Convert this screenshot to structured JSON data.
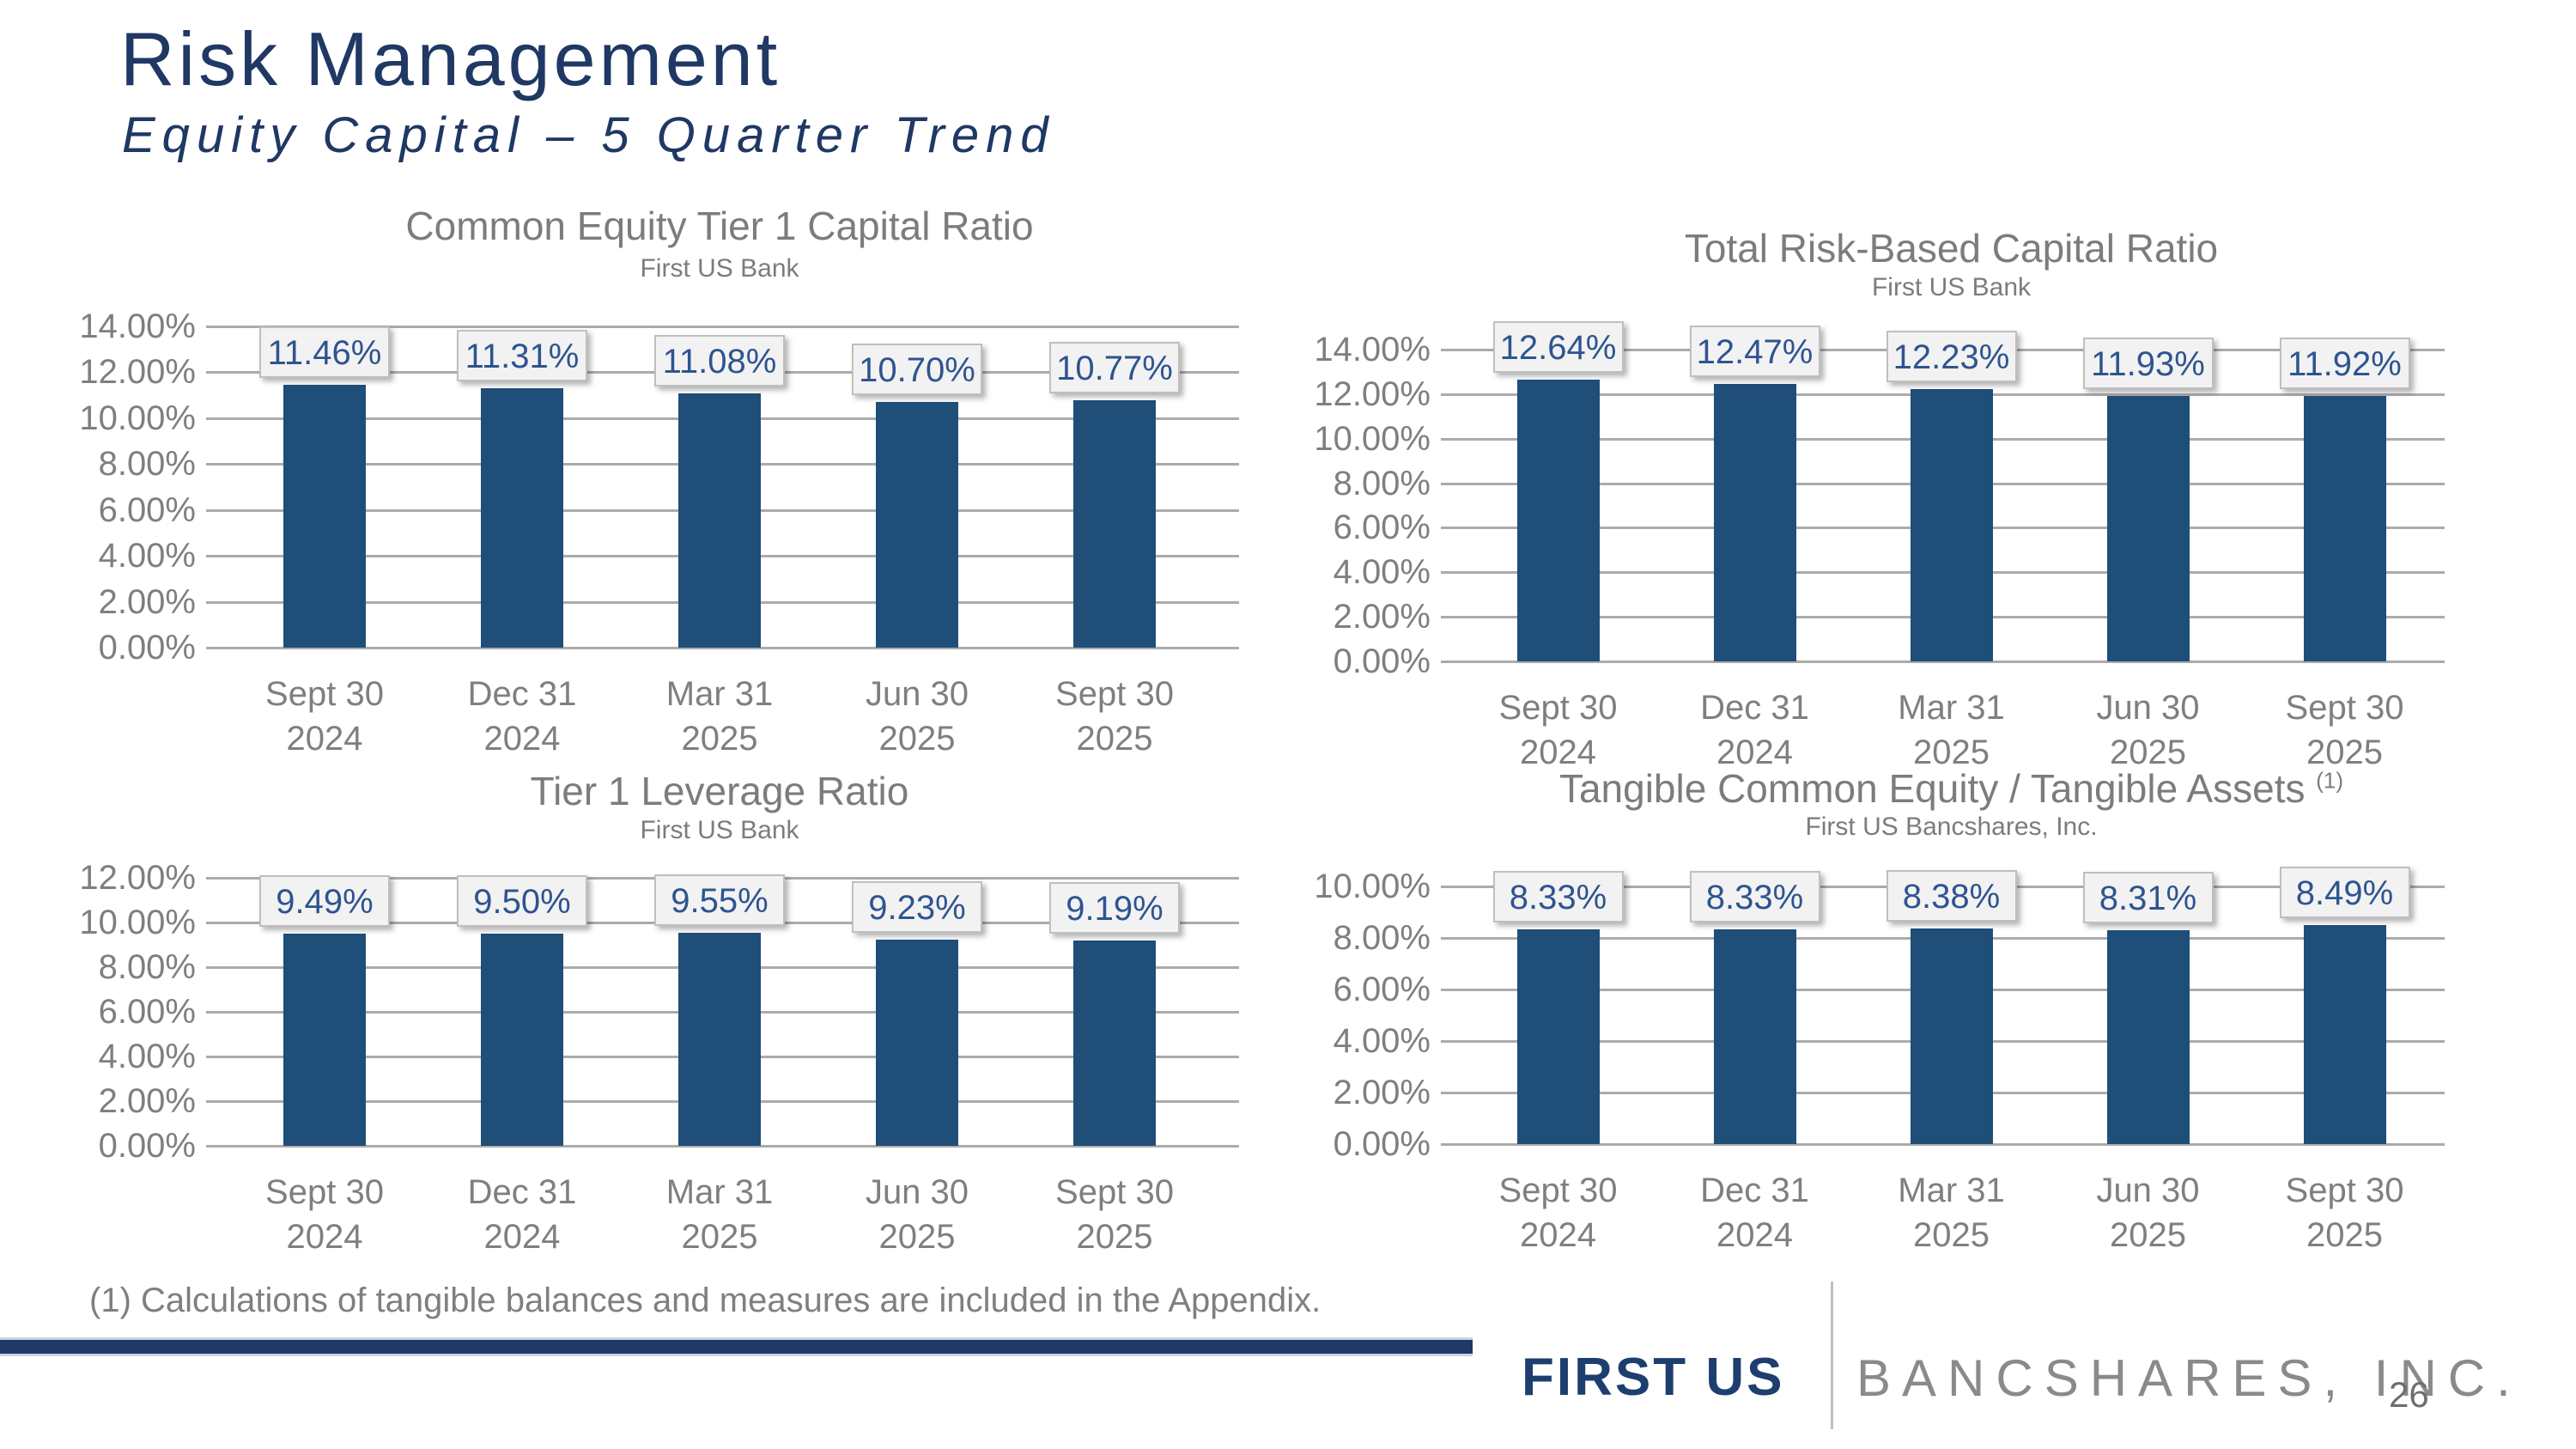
{
  "header": {
    "title": "Risk Management",
    "subtitle": "Equity Capital – 5 Quarter Trend"
  },
  "footnote": "(1) Calculations of tangible balances and measures are included in the Appendix.",
  "footer": {
    "logo_primary": "FIRST US",
    "logo_secondary": "BANCSHARES, INC.",
    "page_number": "26"
  },
  "colors": {
    "title_navy": "#1F3864",
    "bar_fill": "#1F4E79",
    "value_label_text": "#2E5490",
    "value_label_box_fill": "#F2F2F2",
    "value_label_box_border": "#BFBFBF",
    "axis_text_gray": "#7F7F7F",
    "chart_title_gray": "#7C7C7C",
    "gridline_gray": "#ABABAB",
    "footer_bar_navy": "#1F3864",
    "footer_bar_edge": "#C9D2E8",
    "logo_navy": "#1D3E6E",
    "logo_gray": "#8A8A8A"
  },
  "chart_data": [
    {
      "type": "bar",
      "title": "Common Equity Tier 1 Capital Ratio",
      "title_superscript": "",
      "subtitle": "First US Bank",
      "categories": [
        [
          "Sept 30",
          "2024"
        ],
        [
          "Dec 31",
          "2024"
        ],
        [
          "Mar 31",
          "2025"
        ],
        [
          "Jun 30",
          "2025"
        ],
        [
          "Sept 30",
          "2025"
        ]
      ],
      "values": [
        11.46,
        11.31,
        11.08,
        10.7,
        10.77
      ],
      "value_labels": [
        "11.46%",
        "11.31%",
        "11.08%",
        "10.70%",
        "10.77%"
      ],
      "unit": "%",
      "ylim": [
        0,
        14
      ],
      "ytick_step": 2,
      "ytick_labels": [
        "14.00%",
        "12.00%",
        "10.00%",
        "8.00%",
        "6.00%",
        "4.00%",
        "2.00%",
        "0.00%"
      ],
      "grid": true,
      "legend": "none",
      "data_labels": "boxed above bars",
      "bar_color": "#1F4E79"
    },
    {
      "type": "bar",
      "title": "Total Risk-Based Capital Ratio",
      "title_superscript": "",
      "subtitle": "First US Bank",
      "categories": [
        [
          "Sept 30",
          "2024"
        ],
        [
          "Dec 31",
          "2024"
        ],
        [
          "Mar 31",
          "2025"
        ],
        [
          "Jun 30",
          "2025"
        ],
        [
          "Sept 30",
          "2025"
        ]
      ],
      "values": [
        12.64,
        12.47,
        12.23,
        11.93,
        11.92
      ],
      "value_labels": [
        "12.64%",
        "12.47%",
        "12.23%",
        "11.93%",
        "11.92%"
      ],
      "unit": "%",
      "ylim": [
        0,
        14
      ],
      "ytick_step": 2,
      "ytick_labels": [
        "14.00%",
        "12.00%",
        "10.00%",
        "8.00%",
        "6.00%",
        "4.00%",
        "2.00%",
        "0.00%"
      ],
      "grid": true,
      "legend": "none",
      "data_labels": "boxed above bars",
      "bar_color": "#1F4E79"
    },
    {
      "type": "bar",
      "title": "Tier 1 Leverage Ratio",
      "title_superscript": "",
      "subtitle": "First US Bank",
      "categories": [
        [
          "Sept 30",
          "2024"
        ],
        [
          "Dec 31",
          "2024"
        ],
        [
          "Mar 31",
          "2025"
        ],
        [
          "Jun 30",
          "2025"
        ],
        [
          "Sept 30",
          "2025"
        ]
      ],
      "values": [
        9.49,
        9.5,
        9.55,
        9.23,
        9.19
      ],
      "value_labels": [
        "9.49%",
        "9.50%",
        "9.55%",
        "9.23%",
        "9.19%"
      ],
      "unit": "%",
      "ylim": [
        0,
        12
      ],
      "ytick_step": 2,
      "ytick_labels": [
        "12.00%",
        "10.00%",
        "8.00%",
        "6.00%",
        "4.00%",
        "2.00%",
        "0.00%"
      ],
      "grid": true,
      "legend": "none",
      "data_labels": "boxed above bars",
      "bar_color": "#1F4E79"
    },
    {
      "type": "bar",
      "title": "Tangible Common Equity / Tangible Assets",
      "title_superscript": "(1)",
      "subtitle": "First US Bancshares, Inc.",
      "categories": [
        [
          "Sept 30",
          "2024"
        ],
        [
          "Dec 31",
          "2024"
        ],
        [
          "Mar 31",
          "2025"
        ],
        [
          "Jun 30",
          "2025"
        ],
        [
          "Sept 30",
          "2025"
        ]
      ],
      "values": [
        8.33,
        8.33,
        8.38,
        8.31,
        8.49
      ],
      "value_labels": [
        "8.33%",
        "8.33%",
        "8.38%",
        "8.31%",
        "8.49%"
      ],
      "unit": "%",
      "ylim": [
        0,
        10
      ],
      "ytick_step": 2,
      "ytick_labels": [
        "10.00%",
        "8.00%",
        "6.00%",
        "4.00%",
        "2.00%",
        "0.00%"
      ],
      "grid": true,
      "legend": "none",
      "data_labels": "boxed above bars",
      "bar_color": "#1F4E79"
    }
  ]
}
